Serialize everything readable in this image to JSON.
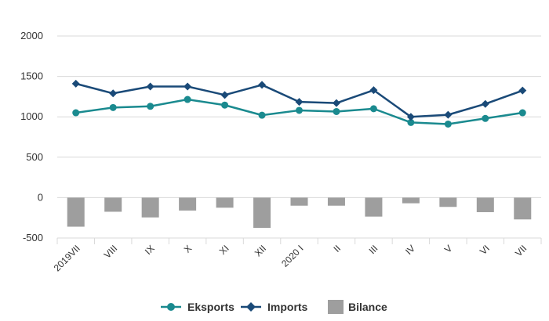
{
  "chart_data": {
    "type": "line+bar",
    "categories": [
      "2019VII",
      "VIII",
      "IX",
      "X",
      "XI",
      "XII",
      "2020 I",
      "II",
      "III",
      "IV",
      "V",
      "VI",
      "VII"
    ],
    "series": [
      {
        "name": "Eksports",
        "type": "line",
        "color": "#1a8a8f",
        "marker": "circle",
        "values": [
          1050,
          1115,
          1130,
          1215,
          1145,
          1020,
          1080,
          1065,
          1100,
          930,
          910,
          980,
          1050
        ]
      },
      {
        "name": "Imports",
        "type": "line",
        "color": "#1a4a78",
        "marker": "diamond",
        "values": [
          1410,
          1290,
          1375,
          1375,
          1270,
          1395,
          1185,
          1170,
          1330,
          1000,
          1025,
          1160,
          1325
        ]
      },
      {
        "name": "Bilance",
        "type": "bar",
        "color": "#9e9e9e",
        "values": [
          -360,
          -175,
          -245,
          -160,
          -125,
          -375,
          -100,
          -100,
          -235,
          -70,
          -115,
          -180,
          -270
        ]
      }
    ],
    "yticks": [
      "2000",
      "1500",
      "1000",
      "500",
      "0",
      "-500"
    ],
    "ylim": [
      -500,
      2000
    ],
    "grid": true,
    "legend": "bottom-center",
    "title": "",
    "xlabel": "",
    "ylabel": ""
  }
}
